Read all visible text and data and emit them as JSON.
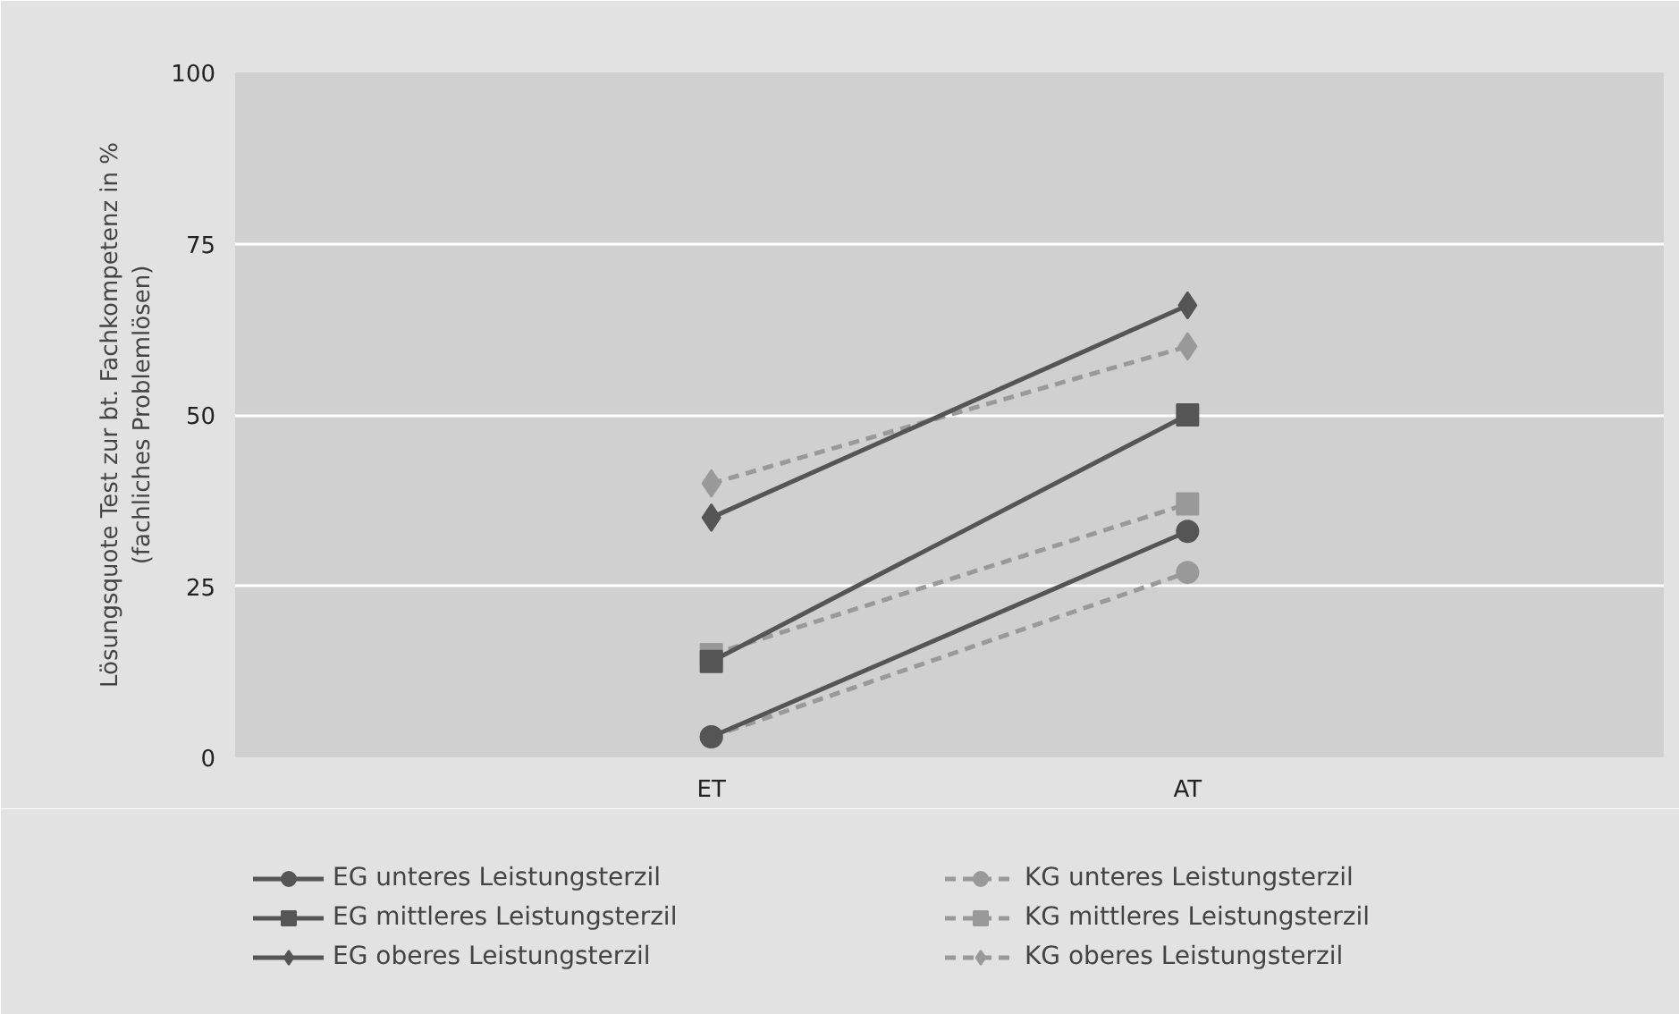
{
  "chart_data": {
    "type": "line",
    "ylabel": "Lösungsquote Test zur bt. Fachkompetenz in %\n(fachliches Problemlösen)",
    "categories": [
      "ET",
      "AT"
    ],
    "ylim": [
      0,
      100
    ],
    "yticks": [
      0,
      25,
      50,
      75,
      100
    ],
    "grid": "y",
    "legend": "bottom",
    "series": [
      {
        "name": "EG unteres Leistungsterzil",
        "color": "#555555",
        "values": [
          3,
          33
        ],
        "marker": "circle",
        "line_style": "solid"
      },
      {
        "name": "EG mittleres Leistungsterzil",
        "color": "#555555",
        "values": [
          14,
          50
        ],
        "marker": "square",
        "line_style": "solid"
      },
      {
        "name": "EG oberes Leistungsterzil",
        "color": "#555555",
        "values": [
          35,
          66
        ],
        "marker": "diamond",
        "line_style": "solid"
      },
      {
        "name": "KG unteres Leistungsterzil",
        "color": "#999999",
        "values": [
          3,
          27
        ],
        "marker": "circle",
        "line_style": "dashed"
      },
      {
        "name": "KG mittleres Leistungsterzil",
        "color": "#999999",
        "values": [
          15,
          37
        ],
        "marker": "square",
        "line_style": "dashed"
      },
      {
        "name": "KG oberes Leistungsterzil",
        "color": "#999999",
        "values": [
          40,
          60
        ],
        "marker": "diamond",
        "line_style": "dashed"
      }
    ]
  }
}
